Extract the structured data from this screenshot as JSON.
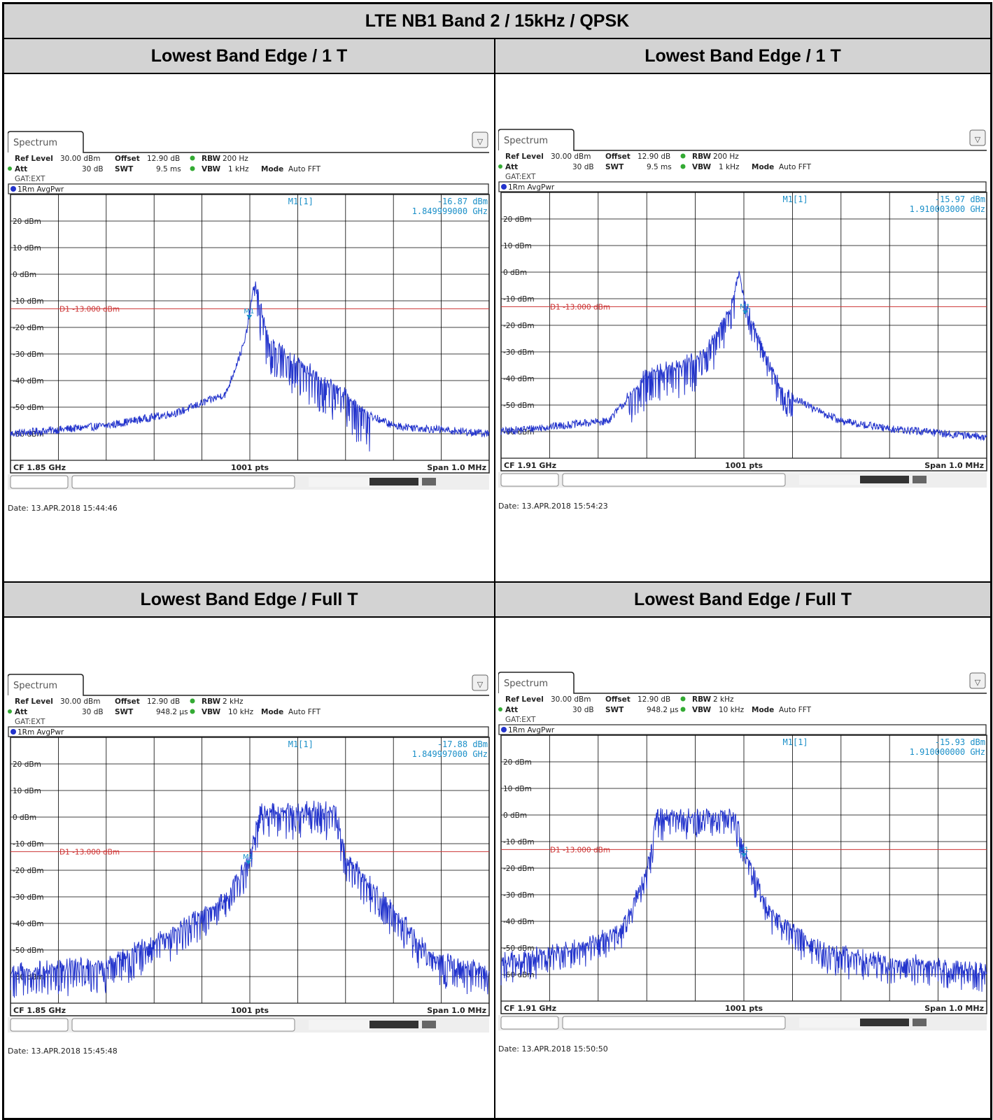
{
  "title": "LTE NB1 Band 2 / 15kHz / QPSK",
  "panels": [
    {
      "heading": "Lowest Band Edge / 1 T"
    },
    {
      "heading": "Lowest Band Edge / 1 T"
    },
    {
      "heading": "Lowest Band Edge / Full T"
    },
    {
      "heading": "Lowest Band Edge / Full T"
    }
  ],
  "analyzer_common": {
    "tab_label": "Spectrum",
    "ref_level_label": "Ref Level",
    "ref_level": "30.00 dBm",
    "offset_label": "Offset",
    "offset": "12.90 dB",
    "att_label": "Att",
    "att": "30 dB",
    "swt_label": "SWT",
    "rbw_label": "RBW",
    "vbw_label": "VBW",
    "mode_label": "Mode",
    "mode": "Auto FFT",
    "gat": "GAT:EXT",
    "trace_label": "1Rm AvgPwr",
    "marker_label": "M1[1]",
    "marker_tag": "M1",
    "line_label": "D1  -13.000 dBm",
    "pts": "1001 pts",
    "span": "Span 1.0 MHz",
    "colors": {
      "trace": "#2233cc",
      "line": "#cc3333",
      "marker": "#1a8fc8",
      "grid": "#000000"
    }
  },
  "chart_data": [
    {
      "type": "line",
      "title": "",
      "cf": "CF 1.85 GHz",
      "swt": "9.5 ms",
      "rbw": "200 Hz",
      "vbw": "1 kHz",
      "marker_value": "-16.87 dBm",
      "marker_freq": "1.849999000 GHz",
      "date": "Date: 13.APR.2018  15:44:46",
      "xlim_mhz": [
        1849.5,
        1850.5
      ],
      "ylim_dbm": [
        -70,
        30
      ],
      "yticks": [
        "20 dBm",
        "10 dBm",
        "0 dBm",
        "-10 dBm",
        "-20 dBm",
        "-30 dBm",
        "-40 dBm",
        "-50 dBm",
        "-60 dBm"
      ],
      "display_line_dbm": -13,
      "marker_x_mhz": 1849.999,
      "marker_dbm": -16.87,
      "envelope": {
        "x_mhz": [
          1849.5,
          1849.7,
          1849.85,
          1849.95,
          1849.99,
          1850.01,
          1850.02,
          1850.04,
          1850.1,
          1850.2,
          1850.25,
          1850.3,
          1850.5
        ],
        "y_dbm": [
          -60,
          -57,
          -52,
          -45,
          -25,
          -3,
          -10,
          -25,
          -33,
          -45,
          -53,
          -57,
          -60
        ]
      },
      "grass_bands": [
        {
          "x_mhz": [
            1850.01,
            1850.25
          ],
          "depth_db": 14
        }
      ],
      "noise_db": 1.5
    },
    {
      "type": "line",
      "title": "",
      "cf": "CF 1.91 GHz",
      "swt": "9.5 ms",
      "rbw": "200 Hz",
      "vbw": "1 kHz",
      "marker_value": "-15.97 dBm",
      "marker_freq": "1.910003000 GHz",
      "date": "Date: 13.APR.2018  15:54:23",
      "xlim_mhz": [
        1909.5,
        1910.5
      ],
      "ylim_dbm": [
        -70,
        30
      ],
      "yticks": [
        "20 dBm",
        "10 dBm",
        "0 dBm",
        "-10 dBm",
        "-20 dBm",
        "-30 dBm",
        "-40 dBm",
        "-50 dBm",
        "-60 dBm"
      ],
      "display_line_dbm": -13,
      "marker_x_mhz": 1910.003,
      "marker_dbm": -15.97,
      "envelope": {
        "x_mhz": [
          1909.5,
          1909.72,
          1909.76,
          1909.8,
          1909.87,
          1909.92,
          1909.97,
          1909.99,
          1910.0,
          1910.03,
          1910.08,
          1910.15,
          1910.2,
          1910.3,
          1910.5
        ],
        "y_dbm": [
          -60,
          -56,
          -48,
          -38,
          -35,
          -30,
          -15,
          0,
          -10,
          -25,
          -45,
          -52,
          -56,
          -59,
          -62
        ]
      },
      "grass_bands": [
        {
          "x_mhz": [
            1909.76,
            1909.98
          ],
          "depth_db": 12
        },
        {
          "x_mhz": [
            1910.0,
            1910.1
          ],
          "depth_db": 8
        }
      ],
      "noise_db": 1.5
    },
    {
      "type": "line",
      "title": "",
      "cf": "CF 1.85 GHz",
      "swt": "948.2 µs",
      "rbw": "2 kHz",
      "vbw": "10 kHz",
      "marker_value": "-17.88 dBm",
      "marker_freq": "1.849997000 GHz",
      "date": "Date: 13.APR.2018  15:45:48",
      "xlim_mhz": [
        1849.5,
        1850.5
      ],
      "ylim_dbm": [
        -70,
        30
      ],
      "yticks": [
        "20 dBm",
        "10 dBm",
        "0 dBm",
        "-10 dBm",
        "-20 dBm",
        "-30 dBm",
        "-40 dBm",
        "-50 dBm",
        "-60 dBm"
      ],
      "display_line_dbm": -13,
      "marker_x_mhz": 1849.997,
      "marker_dbm": -17.88,
      "envelope": {
        "x_mhz": [
          1849.5,
          1849.7,
          1849.85,
          1849.95,
          1850.0,
          1850.02,
          1850.1,
          1850.18,
          1850.2,
          1850.3,
          1850.38,
          1850.5
        ],
        "y_dbm": [
          -58,
          -55,
          -42,
          -30,
          -15,
          3,
          3,
          3,
          -15,
          -35,
          -52,
          -58
        ]
      },
      "grass_bands": [
        {
          "x_mhz": [
            1849.5,
            1850.5
          ],
          "depth_db": 10
        }
      ],
      "noise_db": 2
    },
    {
      "type": "line",
      "title": "",
      "cf": "CF 1.91 GHz",
      "swt": "948.2 µs",
      "rbw": "2 kHz",
      "vbw": "10 kHz",
      "marker_value": "-15.93 dBm",
      "marker_freq": "1.910000000 GHz",
      "date": "Date: 13.APR.2018  15:50:50",
      "xlim_mhz": [
        1909.5,
        1910.5
      ],
      "ylim_dbm": [
        -70,
        30
      ],
      "yticks": [
        "20 dBm",
        "10 dBm",
        "0 dBm",
        "-10 dBm",
        "-20 dBm",
        "-30 dBm",
        "-40 dBm",
        "-50 dBm",
        "-60 dBm"
      ],
      "display_line_dbm": -13,
      "marker_x_mhz": 1910.0,
      "marker_dbm": -15.93,
      "envelope": {
        "x_mhz": [
          1909.5,
          1909.65,
          1909.75,
          1909.8,
          1909.82,
          1909.98,
          1910.0,
          1910.05,
          1910.15,
          1910.3,
          1910.5
        ],
        "y_dbm": [
          -55,
          -50,
          -42,
          -22,
          0,
          0,
          -12,
          -35,
          -50,
          -55,
          -58
        ]
      },
      "grass_bands": [
        {
          "x_mhz": [
            1909.5,
            1910.5
          ],
          "depth_db": 8
        }
      ],
      "noise_db": 2
    }
  ]
}
